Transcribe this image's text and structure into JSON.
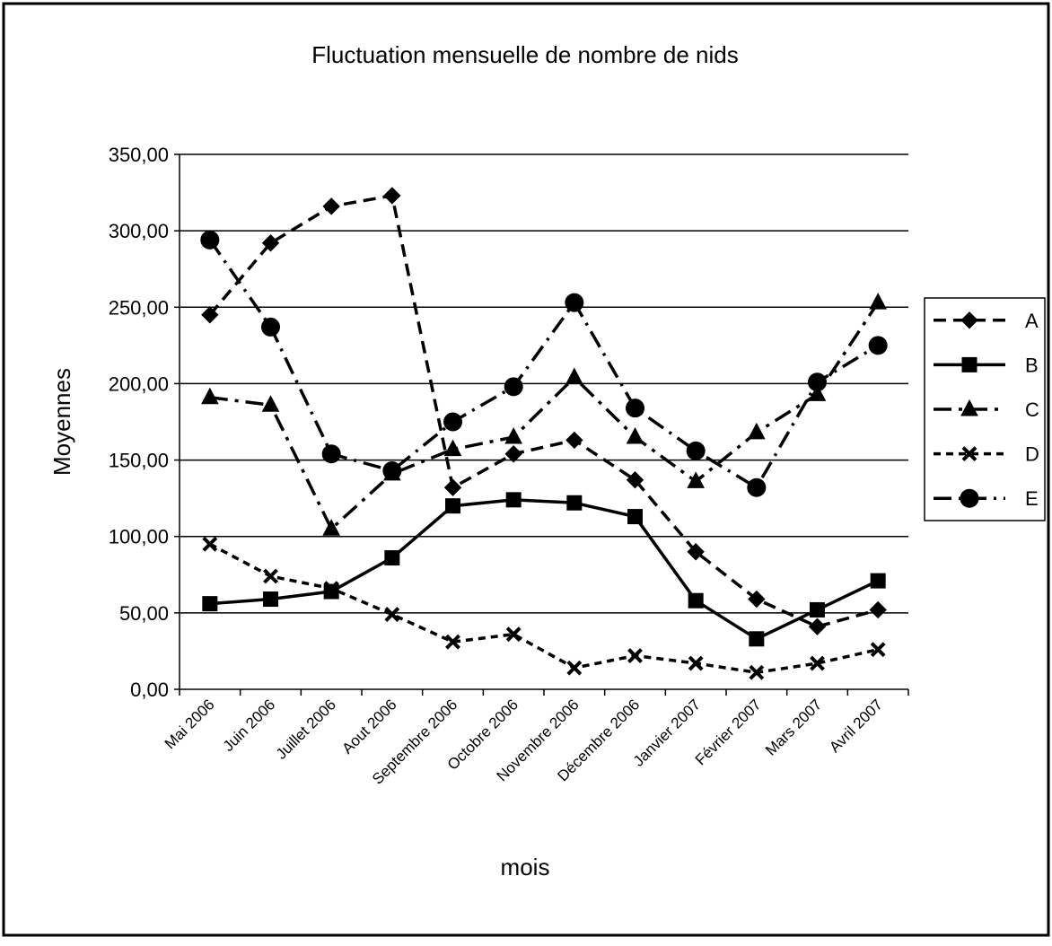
{
  "chart_data": {
    "type": "line",
    "title": "Fluctuation mensuelle de nombre de nids",
    "x_label": "mois",
    "y_label": "Moyennes",
    "categories": [
      "Mai 2006",
      "Juin 2006",
      "Juillet 2006",
      "Aout 2006",
      "Septembre 2006",
      "Octobre 2006",
      "Novembre 2006",
      "Décembre 2006",
      "Janvier 2007",
      "Février 2007",
      "Mars 2007",
      "Avril 2007"
    ],
    "series": [
      {
        "name": "A",
        "color": "#000000",
        "dash": "14 8",
        "marker": "diamond",
        "values": [
          245,
          292,
          316,
          323,
          132,
          154,
          163,
          137,
          90,
          59,
          41,
          52
        ]
      },
      {
        "name": "B",
        "color": "#000000",
        "dash": "none",
        "marker": "square",
        "values": [
          56,
          59,
          64,
          86,
          120,
          124,
          122,
          113,
          58,
          33,
          52,
          71
        ]
      },
      {
        "name": "C",
        "color": "#000000",
        "dash": "20 8 4 8",
        "marker": "triangle",
        "values": [
          191,
          186,
          105,
          141,
          157,
          165,
          204,
          165,
          136,
          168,
          193,
          253
        ]
      },
      {
        "name": "D",
        "color": "#000000",
        "dash": "8 6",
        "marker": "cross",
        "values": [
          95,
          74,
          66,
          49,
          31,
          36,
          14,
          22,
          17,
          11,
          17,
          26
        ]
      },
      {
        "name": "E",
        "color": "#000000",
        "dash": "20 8 3 8",
        "marker": "circle",
        "values": [
          294,
          237,
          154,
          143,
          175,
          198,
          253,
          184,
          156,
          132,
          201,
          225
        ]
      }
    ],
    "ylim": [
      0,
      350
    ],
    "yticks": [
      {
        "value": 0,
        "label": "0,00"
      },
      {
        "value": 50,
        "label": "50,00"
      },
      {
        "value": 100,
        "label": "100,00"
      },
      {
        "value": 150,
        "label": "150,00"
      },
      {
        "value": 200,
        "label": "200,00"
      },
      {
        "value": 250,
        "label": "250,00"
      },
      {
        "value": 300,
        "label": "300,00"
      },
      {
        "value": 350,
        "label": "350,00"
      }
    ],
    "grid": true,
    "legend": "right"
  }
}
